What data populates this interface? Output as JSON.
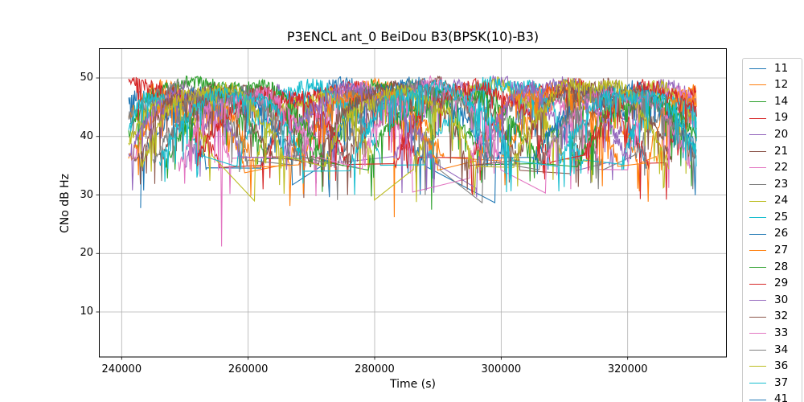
{
  "chart_data": {
    "type": "line",
    "title": "P3ENCL ant_0 BeiDou B3(BPSK(10)-B3)",
    "xlabel": "Time (s)",
    "ylabel": "CNo dB Hz",
    "xlim": [
      236440,
      335610
    ],
    "ylim": [
      2.3,
      55.1
    ],
    "grid": true,
    "legend_position": "outside-right",
    "xticks": [
      {
        "v": 240000,
        "label": "240000"
      },
      {
        "v": 260000,
        "label": "260000"
      },
      {
        "v": 280000,
        "label": "280000"
      },
      {
        "v": 300000,
        "label": "300000"
      },
      {
        "v": 320000,
        "label": "320000"
      }
    ],
    "yticks": [
      {
        "v": 10,
        "label": "10"
      },
      {
        "v": 20,
        "label": "20"
      },
      {
        "v": 30,
        "label": "30"
      },
      {
        "v": 40,
        "label": "40"
      },
      {
        "v": 50,
        "label": "50"
      }
    ],
    "t_range": [
      241100,
      330900
    ],
    "arc_base_level": 35.3,
    "noise_band_db": 1.2,
    "y_ceiling_db": 50.35,
    "legend": {
      "items": [
        {
          "label": "11",
          "color": "#1f77b4",
          "partial": false
        },
        {
          "label": "12",
          "color": "#ff7f0e",
          "partial": false
        },
        {
          "label": "14",
          "color": "#2ca02c",
          "partial": false
        },
        {
          "label": "19",
          "color": "#d62728",
          "partial": false
        },
        {
          "label": "20",
          "color": "#9467bd",
          "partial": false
        },
        {
          "label": "21",
          "color": "#8c564b",
          "partial": false
        },
        {
          "label": "22",
          "color": "#e377c2",
          "partial": false
        },
        {
          "label": "23",
          "color": "#7f7f7f",
          "partial": false
        },
        {
          "label": "24",
          "color": "#bcbd22",
          "partial": false
        },
        {
          "label": "25",
          "color": "#17becf",
          "partial": false
        },
        {
          "label": "26",
          "color": "#1f77b4",
          "partial": false
        },
        {
          "label": "27",
          "color": "#ff7f0e",
          "partial": false
        },
        {
          "label": "28",
          "color": "#2ca02c",
          "partial": false
        },
        {
          "label": "29",
          "color": "#d62728",
          "partial": false
        },
        {
          "label": "30",
          "color": "#9467bd",
          "partial": false
        },
        {
          "label": "32",
          "color": "#8c564b",
          "partial": false
        },
        {
          "label": "33",
          "color": "#e377c2",
          "partial": false
        },
        {
          "label": "34",
          "color": "#7f7f7f",
          "partial": false
        },
        {
          "label": "36",
          "color": "#bcbd22",
          "partial": false
        },
        {
          "label": "37",
          "color": "#17becf",
          "partial": false
        },
        {
          "label": "41",
          "color": "#1f77b4",
          "partial": true
        }
      ]
    },
    "series": [
      {
        "name": "11",
        "color": "#1f77b4",
        "passes": [
          [
            236000,
            253500,
            47.5
          ],
          [
            262000,
            288000,
            48.6
          ],
          [
            299000,
            323000,
            48.2
          ]
        ],
        "dips": []
      },
      {
        "name": "12",
        "color": "#ff7f0e",
        "passes": [
          [
            237000,
            259500,
            48.2
          ],
          [
            266000,
            291000,
            48.6
          ],
          [
            300000,
            322000,
            47.6
          ],
          [
            324500,
            338000,
            48.4
          ]
        ],
        "dips": [
          [
            283100,
            26.2
          ]
        ]
      },
      {
        "name": "14",
        "color": "#2ca02c",
        "passes": [
          [
            239000,
            263000,
            49.2
          ],
          [
            270000,
            297000,
            48.8
          ],
          [
            305000,
            331500,
            47.0
          ]
        ],
        "dips": [
          [
            289000,
            27.5
          ]
        ]
      },
      {
        "name": "19",
        "color": "#d62728",
        "passes": [
          [
            230000,
            255500,
            49.0
          ],
          [
            262000,
            287000,
            48.2
          ],
          [
            295000,
            323500,
            48.6
          ],
          [
            326000,
            340000,
            48.0
          ]
        ],
        "dips": [
          [
            322000,
            29.3
          ]
        ]
      },
      {
        "name": "20",
        "color": "#9467bd",
        "passes": [
          [
            250000,
            275000,
            47.6
          ],
          [
            283000,
            312000,
            49.0
          ],
          [
            317000,
            335000,
            48.4
          ]
        ],
        "dips": []
      },
      {
        "name": "21",
        "color": "#8c564b",
        "passes": [
          [
            246000,
            270000,
            48.2
          ],
          [
            275000,
            303000,
            49.0
          ],
          [
            311000,
            331000,
            47.4
          ]
        ],
        "dips": [
          [
            268800,
            29.5
          ]
        ]
      },
      {
        "name": "22",
        "color": "#e377c2",
        "passes": [
          [
            242000,
            257500,
            46.5
          ],
          [
            268000,
            286000,
            48.0
          ],
          [
            295000,
            315500,
            46.8
          ],
          [
            320000,
            333000,
            48.2
          ]
        ],
        "dips": [
          [
            255800,
            21.2
          ],
          [
            311000,
            31.0
          ]
        ]
      },
      {
        "name": "23",
        "color": "#7f7f7f",
        "passes": [
          [
            238000,
            260000,
            48.0
          ],
          [
            267000,
            290500,
            47.2
          ],
          [
            297000,
            316000,
            46.5
          ],
          [
            321000,
            334000,
            45.0
          ]
        ],
        "dips": [
          [
            288000,
            30.0
          ]
        ]
      },
      {
        "name": "24",
        "color": "#bcbd22",
        "passes": [
          [
            240000,
            254500,
            45.5
          ],
          [
            261000,
            280000,
            47.0
          ],
          [
            286000,
            310000,
            48.6
          ],
          [
            313500,
            333500,
            48.2
          ]
        ],
        "dips": []
      },
      {
        "name": "25",
        "color": "#17becf",
        "passes": [
          [
            239000,
            252500,
            46.5
          ],
          [
            258000,
            281000,
            48.4
          ],
          [
            288000,
            313000,
            49.0
          ],
          [
            319000,
            334000,
            46.8
          ]
        ],
        "dips": []
      },
      {
        "name": "26",
        "color": "#1f77b4",
        "passes": [
          [
            243000,
            267000,
            47.4
          ],
          [
            272000,
            298000,
            49.0
          ],
          [
            305000,
            331500,
            48.4
          ]
        ],
        "dips": []
      },
      {
        "name": "27",
        "color": "#ff7f0e",
        "passes": [
          [
            241000,
            261000,
            46.4
          ],
          [
            268000,
            290000,
            47.2
          ],
          [
            296000,
            318500,
            48.0
          ],
          [
            323000,
            335000,
            46.5
          ]
        ],
        "dips": [
          [
            316000,
            31.5
          ]
        ]
      },
      {
        "name": "28",
        "color": "#2ca02c",
        "passes": [
          [
            247000,
            272000,
            48.6
          ],
          [
            279000,
            306000,
            47.4
          ],
          [
            312000,
            333000,
            45.8
          ]
        ],
        "dips": []
      },
      {
        "name": "29",
        "color": "#d62728",
        "passes": [
          [
            252000,
            276000,
            47.2
          ],
          [
            283000,
            308000,
            48.2
          ],
          [
            313000,
            334500,
            48.2
          ]
        ],
        "dips": []
      },
      {
        "name": "30",
        "color": "#9467bd",
        "passes": [
          [
            241000,
            259000,
            47.2
          ],
          [
            265000,
            289500,
            48.0
          ],
          [
            296000,
            320000,
            49.0
          ]
        ],
        "dips": [
          [
            288200,
            30.8
          ]
        ]
      },
      {
        "name": "32",
        "color": "#8c564b",
        "passes": [
          [
            242000,
            264000,
            47.4
          ],
          [
            271000,
            295000,
            48.2
          ],
          [
            302000,
            327000,
            48.6
          ]
        ],
        "dips": []
      },
      {
        "name": "33",
        "color": "#e377c2",
        "passes": [
          [
            249000,
            271000,
            47.2
          ],
          [
            278000,
            300000,
            48.6
          ],
          [
            307000,
            330000,
            47.2
          ]
        ],
        "dips": [
          [
            326500,
            31.2
          ]
        ]
      },
      {
        "name": "34",
        "color": "#7f7f7f",
        "passes": [
          [
            245000,
            268000,
            47.6
          ],
          [
            274000,
            299000,
            48.2
          ],
          [
            306000,
            331200,
            47.0
          ]
        ],
        "dips": [
          [
            330300,
            31.0
          ]
        ]
      },
      {
        "name": "36",
        "color": "#bcbd22",
        "passes": [
          [
            243000,
            266000,
            48.0
          ],
          [
            272000,
            296000,
            47.2
          ],
          [
            302000,
            326500,
            49.0
          ]
        ],
        "dips": []
      },
      {
        "name": "37",
        "color": "#17becf",
        "passes": [
          [
            246000,
            269000,
            47.2
          ],
          [
            276000,
            302000,
            48.2
          ],
          [
            309000,
            332000,
            47.2
          ]
        ],
        "dips": []
      }
    ]
  }
}
